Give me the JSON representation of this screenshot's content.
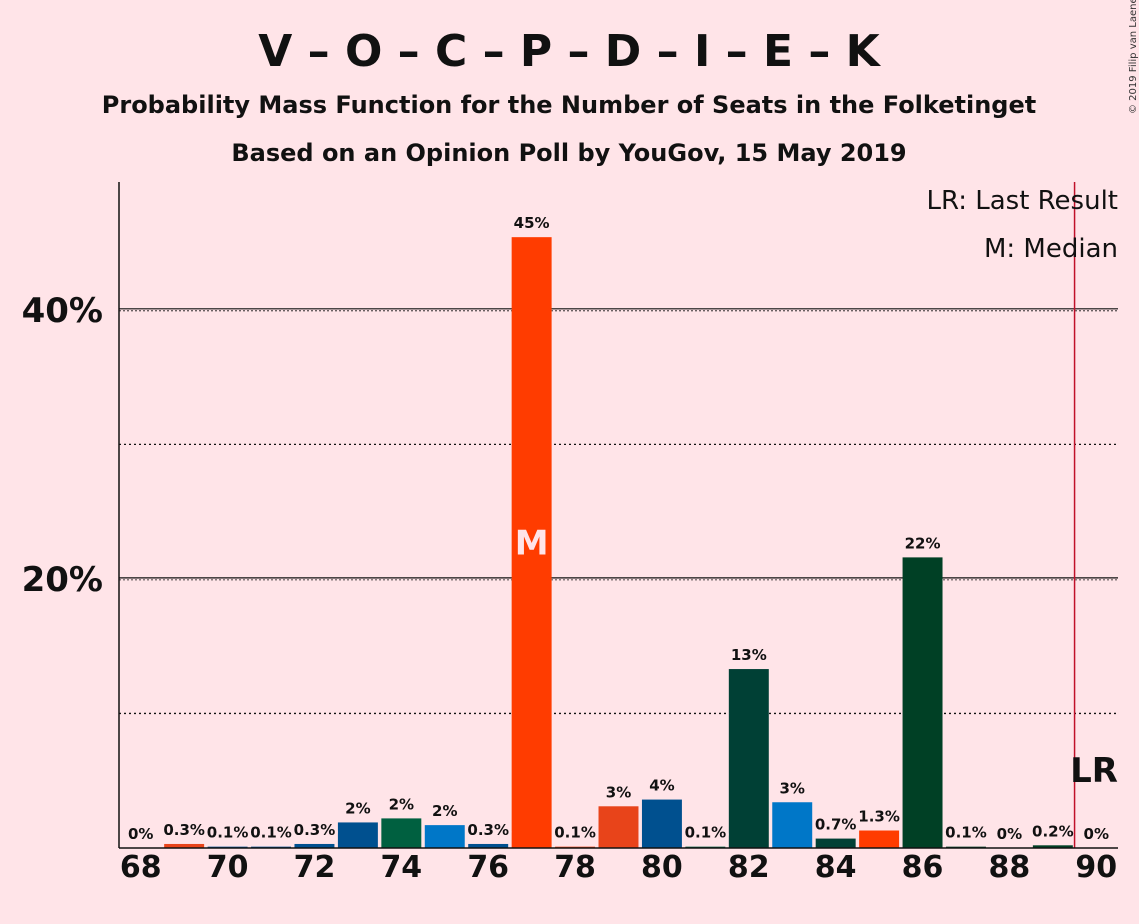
{
  "chart_data": {
    "type": "bar",
    "title": "V – O – C – P – D – I – E – K",
    "subtitle": "Probability Mass Function for the Number of Seats in the Folketinget",
    "subtitle2": "Based on an Opinion Poll by YouGov, 15 May 2019",
    "copyright": "© 2019 Filip van Laenen",
    "legend": {
      "lr": "LR: Last Result",
      "m": "M: Median",
      "placement": "top-right"
    },
    "ylim": [
      0,
      49.5
    ],
    "xlim": [
      67.5,
      90.5
    ],
    "y_ticks": [
      {
        "value": 20,
        "label": "20%"
      },
      {
        "value": 40,
        "label": "40%"
      }
    ],
    "y_gridlines_minor": [
      10,
      30
    ],
    "x_ticks": [
      68,
      70,
      72,
      74,
      76,
      78,
      80,
      82,
      84,
      86,
      88,
      90
    ],
    "bars": [
      {
        "x": 68,
        "value": 0,
        "label": "0%",
        "color": "#e8441a"
      },
      {
        "x": 69,
        "value": 0.3,
        "label": "0.3%",
        "color": "#e8441a"
      },
      {
        "x": 70,
        "value": 0.1,
        "label": "0.1%",
        "color": "#00508f"
      },
      {
        "x": 71,
        "value": 0.1,
        "label": "0.1%",
        "color": "#00508f"
      },
      {
        "x": 72,
        "value": 0.3,
        "label": "0.3%",
        "color": "#00508f"
      },
      {
        "x": 73,
        "value": 1.9,
        "label": "2%",
        "color": "#00508f"
      },
      {
        "x": 74,
        "value": 2.2,
        "label": "2%",
        "color": "#006040"
      },
      {
        "x": 75,
        "value": 1.7,
        "label": "2%",
        "color": "#0077c8"
      },
      {
        "x": 76,
        "value": 0.3,
        "label": "0.3%",
        "color": "#00508f"
      },
      {
        "x": 77,
        "value": 45.4,
        "label": "45%",
        "color": "#ff3c00"
      },
      {
        "x": 78,
        "value": 0.1,
        "label": "0.1%",
        "color": "#e8441a"
      },
      {
        "x": 79,
        "value": 3.1,
        "label": "3%",
        "color": "#e8441a"
      },
      {
        "x": 80,
        "value": 3.6,
        "label": "4%",
        "color": "#00508f"
      },
      {
        "x": 81,
        "value": 0.1,
        "label": "0.1%",
        "color": "#006040"
      },
      {
        "x": 82,
        "value": 13.3,
        "label": "13%",
        "color": "#004035"
      },
      {
        "x": 83,
        "value": 3.4,
        "label": "3%",
        "color": "#0077c8"
      },
      {
        "x": 84,
        "value": 0.7,
        "label": "0.7%",
        "color": "#004035"
      },
      {
        "x": 85,
        "value": 1.3,
        "label": "1.3%",
        "color": "#ff3c00"
      },
      {
        "x": 86,
        "value": 21.6,
        "label": "22%",
        "color": "#004025"
      },
      {
        "x": 87,
        "value": 0.1,
        "label": "0.1%",
        "color": "#004025"
      },
      {
        "x": 88,
        "value": 0,
        "label": "0%",
        "color": "#004025"
      },
      {
        "x": 89,
        "value": 0.2,
        "label": "0.2%",
        "color": "#004025"
      },
      {
        "x": 90,
        "value": 0,
        "label": "0%",
        "color": "#004025"
      }
    ],
    "median": {
      "x": 77,
      "label": "M"
    },
    "last_result": {
      "x": 89.5,
      "label": "LR",
      "color": "#c0102a"
    }
  }
}
